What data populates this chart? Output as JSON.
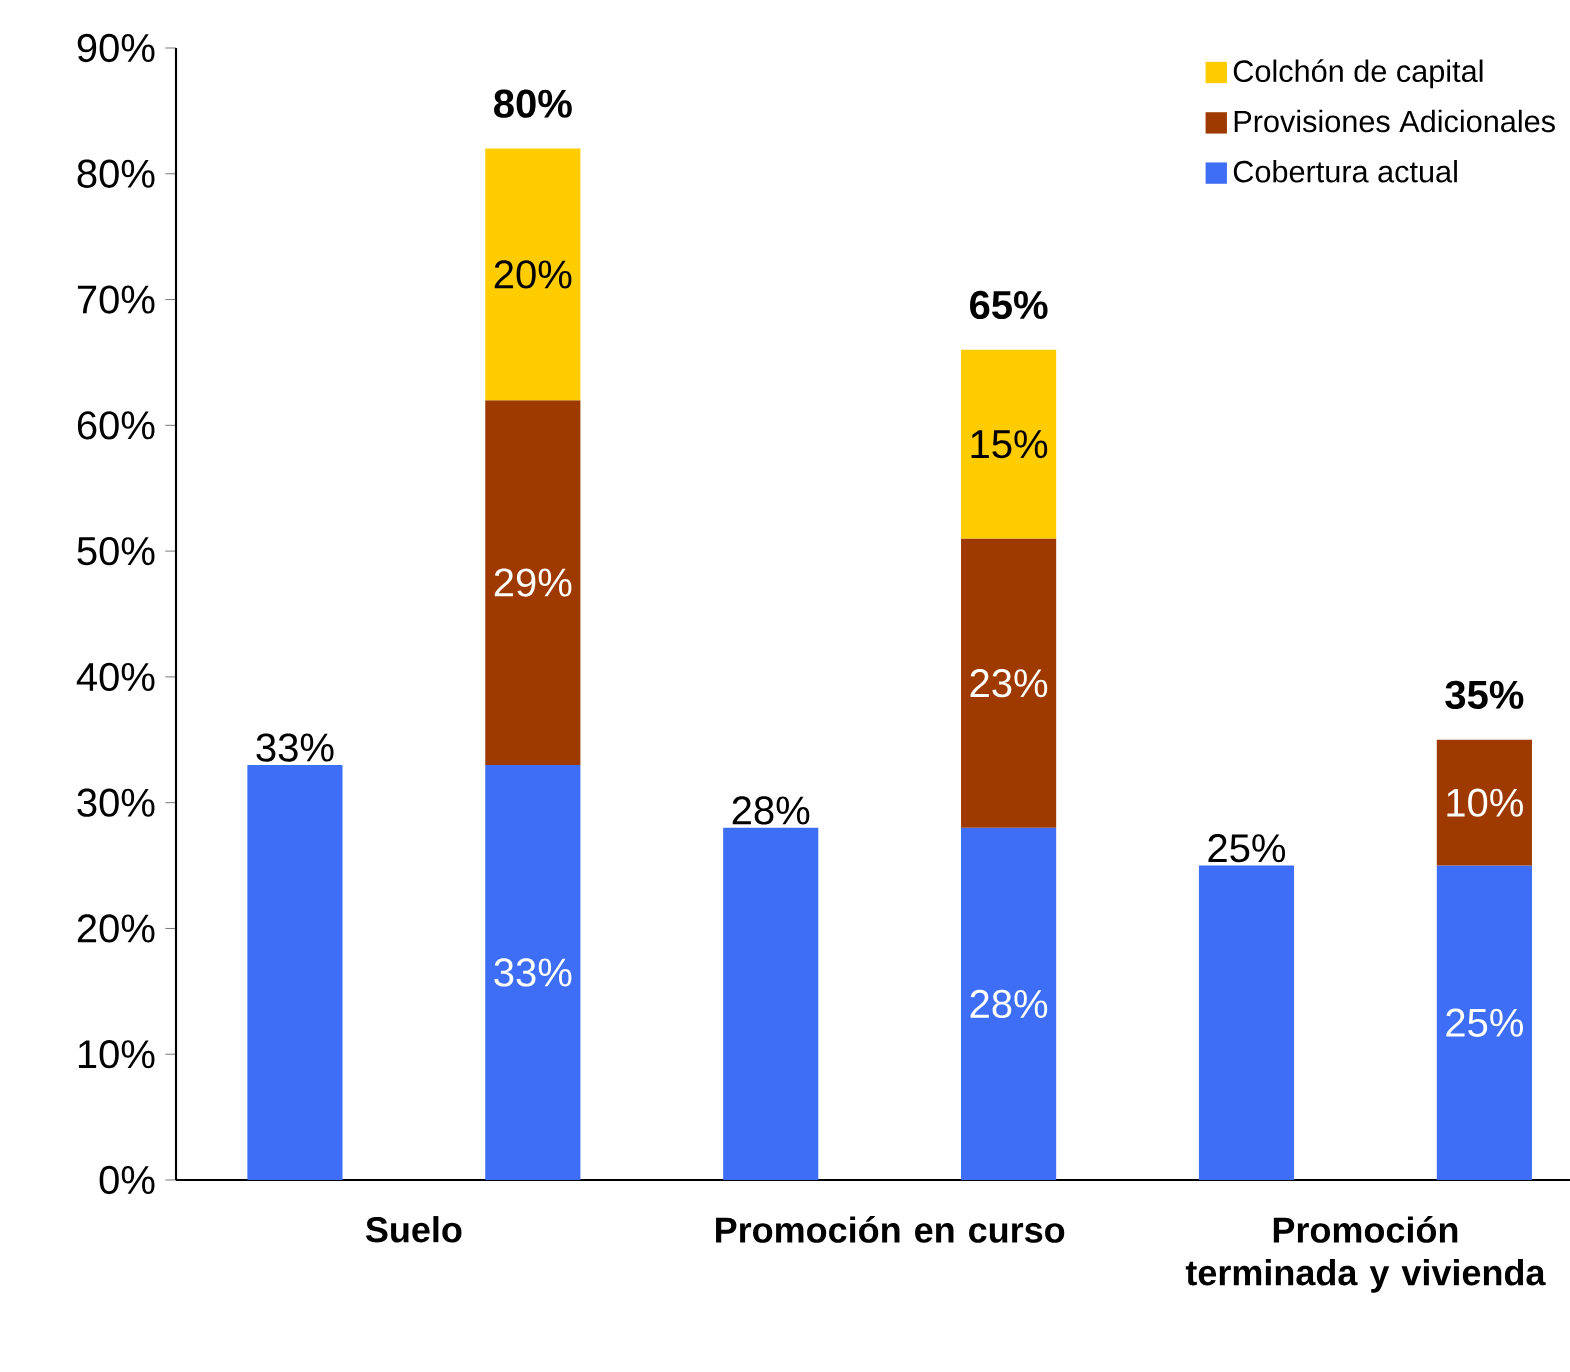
{
  "chart_data": {
    "type": "bar",
    "stacked": true,
    "categories": [
      "Suelo",
      null,
      "Promoción en curso",
      null,
      "Promoción terminada y vivienda",
      null
    ],
    "series": [
      {
        "name": "Cobertura actual",
        "color": "#3e6ef5",
        "values": [
          33,
          33,
          28,
          28,
          25,
          25
        ],
        "value_labels": [
          "33%",
          "33%",
          "28%",
          "28%",
          "25%",
          "25%"
        ]
      },
      {
        "name": "Provisiones Adicionales",
        "color": "#9e3a00",
        "values": [
          null,
          29,
          null,
          23,
          null,
          10
        ],
        "value_labels": [
          null,
          "29%",
          null,
          "23%",
          null,
          "10%"
        ]
      },
      {
        "name": "Colchón de capital",
        "color": "#ffcc00",
        "values": [
          null,
          20,
          null,
          15,
          null,
          null
        ],
        "value_labels": [
          null,
          "20%",
          null,
          "15%",
          null,
          null
        ]
      }
    ],
    "totals": [
      null,
      "80%",
      null,
      "65%",
      null,
      "35%"
    ],
    "ylim": [
      0,
      90
    ],
    "yticks": [
      {
        "value": 0,
        "label": "0%"
      },
      {
        "value": 10,
        "label": "10%"
      },
      {
        "value": 20,
        "label": "20%"
      },
      {
        "value": 30,
        "label": "30%"
      },
      {
        "value": 40,
        "label": "40%"
      },
      {
        "value": 50,
        "label": "50%"
      },
      {
        "value": 60,
        "label": "60%"
      },
      {
        "value": 70,
        "label": "70%"
      },
      {
        "value": 80,
        "label": "80%"
      },
      {
        "value": 90,
        "label": "90%"
      }
    ],
    "grid": false,
    "legend": "top right"
  }
}
